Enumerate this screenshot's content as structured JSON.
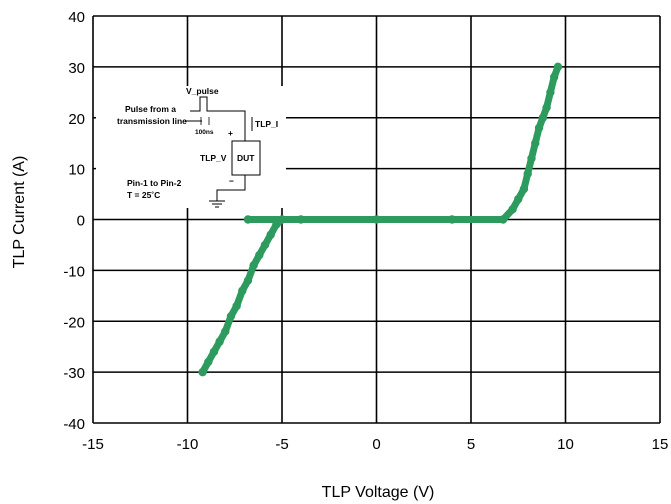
{
  "chart_data": {
    "type": "line",
    "title": "",
    "xlabel": "TLP Voltage (V)",
    "ylabel": "TLP Current (A)",
    "xlim": [
      -15,
      15
    ],
    "ylim": [
      -40,
      40
    ],
    "x_ticks": [
      "-15",
      "-10",
      "-5",
      "0",
      "5",
      "10",
      "15"
    ],
    "y_ticks": [
      "40",
      "30",
      "20",
      "10",
      "0",
      "-10",
      "-20",
      "-30",
      "-40"
    ],
    "grid": true,
    "line_color": "#2e9b5e",
    "series": [
      {
        "x": [
          -9.2,
          -8.9,
          -8.6,
          -8.3,
          -8.0,
          -7.7,
          -7.4,
          -7.1,
          -6.8,
          -6.5,
          -6.2,
          -5.9,
          -5.6,
          -5.3,
          -5.0,
          -6.8,
          -4.0,
          0.0,
          4.0,
          6.7,
          7.2,
          7.5,
          7.8,
          8.0,
          8.2,
          8.4,
          8.6,
          8.8,
          9.0,
          9.2,
          9.4,
          9.6
        ],
        "y": [
          -30.0,
          -28.0,
          -26.0,
          -24.0,
          -22.0,
          -19.0,
          -17.0,
          -14.0,
          -12.0,
          -9.0,
          -7.0,
          -5.0,
          -3.0,
          -1.0,
          0.0,
          0.0,
          0.0,
          0.0,
          0.0,
          0.0,
          2.0,
          4.0,
          6.0,
          9.0,
          12.0,
          15.0,
          18.0,
          20.0,
          22.0,
          25.0,
          28.0,
          30.0
        ]
      }
    ]
  },
  "inset": {
    "pulse_label": "V_pulse",
    "source_label_1": "Pulse from a",
    "source_label_2": "transmission line",
    "width_label": "100ns",
    "current_label": "TLP_I",
    "voltage_label": "TLP_V",
    "dut_label": "DUT",
    "plus_label": "+",
    "minus_label": "−",
    "condition_1": "Pin-1 to Pin-2",
    "condition_2": "T = 25˚C"
  }
}
